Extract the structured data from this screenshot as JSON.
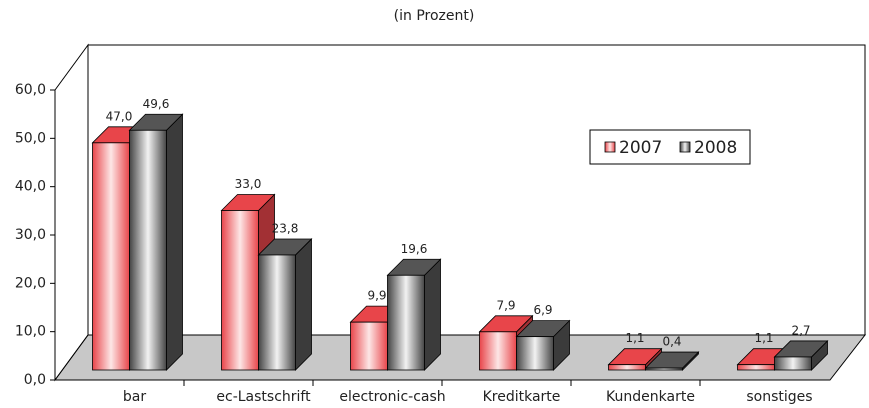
{
  "chart_data": {
    "type": "bar3d",
    "title": "(in Prozent)",
    "categories": [
      "bar",
      "ec-Lastschrift",
      "electronic-cash",
      "Kreditkarte",
      "Kundenkarte",
      "sonstiges"
    ],
    "series": [
      {
        "name": "2007",
        "color": "#e8454a",
        "values": [
          47.0,
          33.0,
          9.9,
          7.9,
          1.1,
          1.1
        ],
        "value_labels": [
          "47,0",
          "33,0",
          "9,9",
          "7,9",
          "1,1",
          "1,1"
        ]
      },
      {
        "name": "2008",
        "color": "#555555",
        "values": [
          49.6,
          23.8,
          19.6,
          6.9,
          0.4,
          2.7
        ],
        "value_labels": [
          "49,6",
          "23,8",
          "19,6",
          "6,9",
          "0,4",
          "2,7"
        ]
      }
    ],
    "ylim": [
      0,
      60
    ],
    "yticks": [
      {
        "value": 0,
        "label": "0,0"
      },
      {
        "value": 10,
        "label": "10,0"
      },
      {
        "value": 20,
        "label": "20,0"
      },
      {
        "value": 30,
        "label": "30,0"
      },
      {
        "value": 40,
        "label": "40,0"
      },
      {
        "value": 50,
        "label": "50,0"
      },
      {
        "value": 60,
        "label": "60,0"
      }
    ],
    "legend": "right"
  }
}
